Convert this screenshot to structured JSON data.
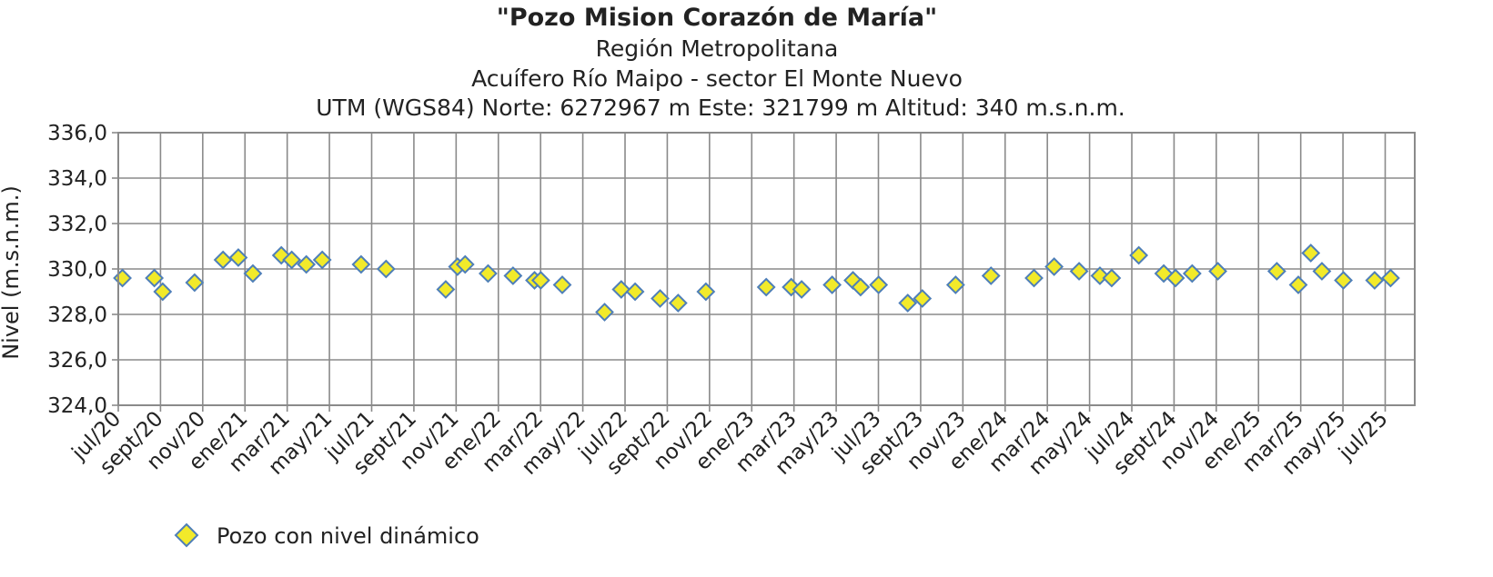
{
  "chart_data": {
    "type": "scatter",
    "title": "\"Pozo Mision Corazón de María\"",
    "subtitles": [
      "Región Metropolitana",
      "Acuífero Río Maipo - sector El Monte Nuevo",
      "UTM (WGS84) Norte: 6272967 m Este: 321799 m   Altitud: 340 m.s.n.m."
    ],
    "ylabel": "Nivel (m.s.n.m.)",
    "xlabel": "",
    "ylim": [
      324,
      336
    ],
    "y_ticks": [
      "324,0",
      "326,0",
      "328,0",
      "330,0",
      "332,0",
      "334,0",
      "336,0"
    ],
    "x_ticks": [
      "jul/20",
      "sept/20",
      "nov/20",
      "ene/21",
      "mar/21",
      "may/21",
      "jul/21",
      "sept/21",
      "nov/21",
      "ene/22",
      "mar/22",
      "may/22",
      "jul/22",
      "sept/22",
      "nov/22",
      "ene/23",
      "mar/23",
      "may/23",
      "jul/23",
      "sept/23",
      "nov/23",
      "ene/24",
      "mar/24",
      "may/24",
      "jul/24",
      "sept/24",
      "nov/24",
      "ene/25",
      "mar/25",
      "may/25",
      "jul/25"
    ],
    "grid": true,
    "legend_position": "bottom-left",
    "series": [
      {
        "name": "Pozo con nivel dinámico",
        "marker": "diamond",
        "color": "#f2ea2a",
        "edge_color": "#4f7fb8",
        "points": [
          {
            "x": "2020-07-06",
            "y": 329.6
          },
          {
            "x": "2020-08-21",
            "y": 329.6
          },
          {
            "x": "2020-09-02",
            "y": 329.0
          },
          {
            "x": "2020-10-18",
            "y": 329.4
          },
          {
            "x": "2020-11-28",
            "y": 330.4
          },
          {
            "x": "2020-12-20",
            "y": 330.5
          },
          {
            "x": "2021-01-10",
            "y": 329.8
          },
          {
            "x": "2021-02-20",
            "y": 330.6
          },
          {
            "x": "2021-03-07",
            "y": 330.4
          },
          {
            "x": "2021-03-28",
            "y": 330.2
          },
          {
            "x": "2021-04-20",
            "y": 330.4
          },
          {
            "x": "2021-06-15",
            "y": 330.2
          },
          {
            "x": "2021-07-21",
            "y": 330.0
          },
          {
            "x": "2021-10-15",
            "y": 329.1
          },
          {
            "x": "2021-11-01",
            "y": 330.1
          },
          {
            "x": "2021-11-12",
            "y": 330.2
          },
          {
            "x": "2021-12-15",
            "y": 329.8
          },
          {
            "x": "2022-01-20",
            "y": 329.7
          },
          {
            "x": "2022-02-20",
            "y": 329.5
          },
          {
            "x": "2022-03-01",
            "y": 329.5
          },
          {
            "x": "2022-04-01",
            "y": 329.3
          },
          {
            "x": "2022-06-01",
            "y": 328.1
          },
          {
            "x": "2022-06-25",
            "y": 329.1
          },
          {
            "x": "2022-07-15",
            "y": 329.0
          },
          {
            "x": "2022-08-20",
            "y": 328.7
          },
          {
            "x": "2022-09-15",
            "y": 328.5
          },
          {
            "x": "2022-10-25",
            "y": 329.0
          },
          {
            "x": "2023-01-20",
            "y": 329.2
          },
          {
            "x": "2023-02-25",
            "y": 329.2
          },
          {
            "x": "2023-03-12",
            "y": 329.1
          },
          {
            "x": "2023-04-25",
            "y": 329.3
          },
          {
            "x": "2023-05-25",
            "y": 329.5
          },
          {
            "x": "2023-06-05",
            "y": 329.2
          },
          {
            "x": "2023-07-01",
            "y": 329.3
          },
          {
            "x": "2023-08-12",
            "y": 328.5
          },
          {
            "x": "2023-09-02",
            "y": 328.7
          },
          {
            "x": "2023-10-20",
            "y": 329.3
          },
          {
            "x": "2023-12-10",
            "y": 329.7
          },
          {
            "x": "2024-02-10",
            "y": 329.6
          },
          {
            "x": "2024-03-10",
            "y": 330.1
          },
          {
            "x": "2024-04-15",
            "y": 329.9
          },
          {
            "x": "2024-05-15",
            "y": 329.7
          },
          {
            "x": "2024-06-01",
            "y": 329.6
          },
          {
            "x": "2024-07-10",
            "y": 330.6
          },
          {
            "x": "2024-08-15",
            "y": 329.8
          },
          {
            "x": "2024-09-01",
            "y": 329.6
          },
          {
            "x": "2024-09-25",
            "y": 329.8
          },
          {
            "x": "2024-11-01",
            "y": 329.9
          },
          {
            "x": "2025-01-25",
            "y": 329.9
          },
          {
            "x": "2025-02-25",
            "y": 329.3
          },
          {
            "x": "2025-03-15",
            "y": 330.7
          },
          {
            "x": "2025-03-31",
            "y": 329.9
          },
          {
            "x": "2025-05-01",
            "y": 329.5
          },
          {
            "x": "2025-06-15",
            "y": 329.5
          },
          {
            "x": "2025-07-08",
            "y": 329.6
          }
        ]
      }
    ]
  }
}
